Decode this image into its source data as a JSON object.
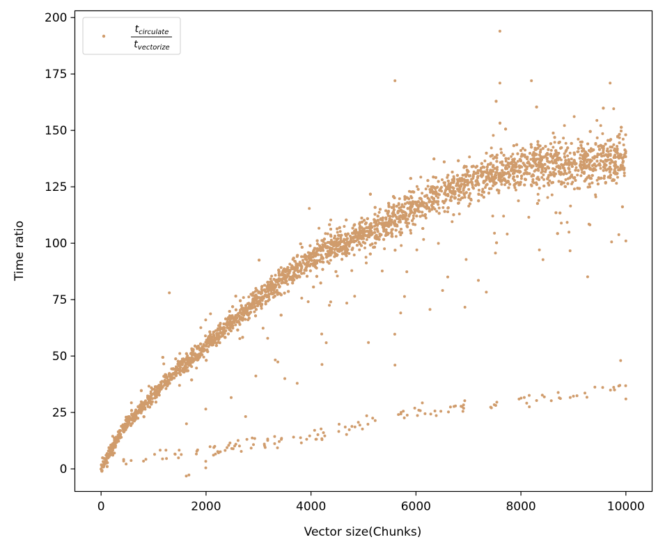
{
  "chart_data": {
    "type": "scatter",
    "xlabel": "Vector size(Chunks)",
    "ylabel": "Time ratio",
    "xlim": [
      -500,
      10500
    ],
    "ylim": [
      -10,
      203
    ],
    "x_ticks": [
      0,
      2000,
      4000,
      6000,
      8000,
      10000
    ],
    "y_ticks": [
      0,
      25,
      50,
      75,
      100,
      125,
      150,
      175,
      200
    ],
    "grid": false,
    "legend_position": "top-left",
    "series": [
      {
        "legend": {
          "num_base": "t",
          "num_sub": "circulate",
          "den_base": "t",
          "den_sub": "vectorize"
        },
        "color": "#d09c6c",
        "main_band": [
          [
            0,
            0.5
          ],
          [
            100,
            5
          ],
          [
            200,
            9
          ],
          [
            300,
            13
          ],
          [
            400,
            17
          ],
          [
            500,
            20
          ],
          [
            700,
            25
          ],
          [
            900,
            30
          ],
          [
            1000,
            33
          ],
          [
            1200,
            38
          ],
          [
            1400,
            43
          ],
          [
            1600,
            47
          ],
          [
            1800,
            51
          ],
          [
            2000,
            55
          ],
          [
            2200,
            59
          ],
          [
            2400,
            63
          ],
          [
            2600,
            67
          ],
          [
            2800,
            71
          ],
          [
            3000,
            75
          ],
          [
            3200,
            79
          ],
          [
            3400,
            83
          ],
          [
            3600,
            87
          ],
          [
            3800,
            90
          ],
          [
            4000,
            93
          ],
          [
            4200,
            96
          ],
          [
            4400,
            98
          ],
          [
            4600,
            100
          ],
          [
            4800,
            102
          ],
          [
            5000,
            104
          ],
          [
            5200,
            106
          ],
          [
            5400,
            108
          ],
          [
            5600,
            111
          ],
          [
            5800,
            114
          ],
          [
            6000,
            117
          ],
          [
            6200,
            119
          ],
          [
            6400,
            121
          ],
          [
            6600,
            123
          ],
          [
            6800,
            125
          ],
          [
            7000,
            126
          ],
          [
            7200,
            128
          ],
          [
            7400,
            130
          ],
          [
            7600,
            132
          ],
          [
            7800,
            134
          ],
          [
            8000,
            133
          ],
          [
            8200,
            134
          ],
          [
            8400,
            135
          ],
          [
            8600,
            135
          ],
          [
            8800,
            136
          ],
          [
            9000,
            136
          ],
          [
            9200,
            136
          ],
          [
            9400,
            136
          ],
          [
            9600,
            137
          ],
          [
            9800,
            138
          ],
          [
            10000,
            139
          ]
        ],
        "secondary_band": [
          [
            400,
            2
          ],
          [
            700,
            4
          ],
          [
            1300,
            6
          ],
          [
            1600,
            6.5
          ],
          [
            1800,
            7.5
          ],
          [
            2000,
            8
          ],
          [
            2400,
            8.5
          ],
          [
            2600,
            10.5
          ],
          [
            3500,
            13
          ],
          [
            3800,
            14
          ],
          [
            4000,
            15
          ],
          [
            4200,
            15
          ],
          [
            4400,
            16
          ],
          [
            4600,
            17
          ],
          [
            4800,
            19
          ],
          [
            5000,
            21
          ],
          [
            5200,
            22
          ],
          [
            5400,
            22
          ],
          [
            5600,
            23
          ],
          [
            5800,
            24
          ],
          [
            6000,
            25
          ],
          [
            6200,
            25
          ],
          [
            6400,
            26
          ],
          [
            6600,
            27
          ],
          [
            6800,
            27
          ],
          [
            7000,
            28
          ],
          [
            7200,
            28
          ],
          [
            7400,
            28
          ],
          [
            7600,
            29
          ],
          [
            7800,
            29
          ],
          [
            8000,
            30
          ],
          [
            8200,
            31
          ],
          [
            8400,
            32
          ],
          [
            8600,
            32
          ],
          [
            8800,
            33
          ],
          [
            9000,
            34
          ],
          [
            9200,
            34
          ],
          [
            9400,
            35
          ],
          [
            9600,
            36
          ],
          [
            9800,
            37
          ],
          [
            10000,
            37
          ]
        ],
        "notable_points": [
          [
            7600,
            194
          ],
          [
            5600,
            172
          ],
          [
            8200,
            172
          ],
          [
            7600,
            171
          ],
          [
            9700,
            171
          ],
          [
            1300,
            78
          ],
          [
            3500,
            40
          ],
          [
            5600,
            46
          ],
          [
            9900,
            48
          ],
          [
            10000,
            31
          ],
          [
            10000,
            101
          ]
        ]
      }
    ]
  }
}
